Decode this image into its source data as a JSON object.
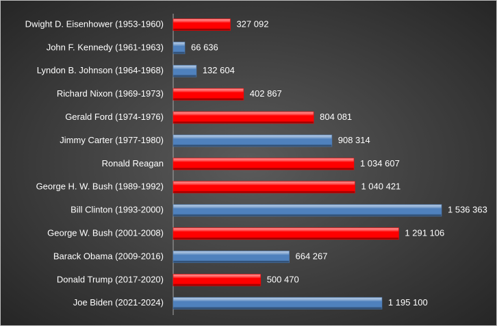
{
  "chart_data": {
    "type": "bar",
    "orientation": "horizontal",
    "categories": [
      "Dwight D. Eisenhower (1953-1960)",
      "John F. Kennedy (1961-1963)",
      "Lyndon B. Johnson (1964-1968)",
      "Richard Nixon (1969-1973)",
      "Gerald Ford (1974-1976)",
      "Jimmy Carter (1977-1980)",
      "Ronald Reagan",
      "George H. W. Bush (1989-1992)",
      "Bill Clinton (1993-2000)",
      "George W. Bush (2001-2008)",
      "Barack Obama (2009-2016)",
      "Donald Trump (2017-2020)",
      "Joe Biden (2021-2024)"
    ],
    "values": [
      327092,
      66636,
      132604,
      402867,
      804081,
      908314,
      1034607,
      1040421,
      1536363,
      1291106,
      664267,
      500470,
      1195100
    ],
    "value_labels": [
      "327 092",
      "66 636",
      "132 604",
      "402 867",
      "804 081",
      "908 314",
      "1 034 607",
      "1 040 421",
      "1 536 363",
      "1 291 106",
      "664 267",
      "500 470",
      "1 195 100"
    ],
    "colors": [
      "#ff0000",
      "#4f81bd",
      "#4f81bd",
      "#ff0000",
      "#ff0000",
      "#4f81bd",
      "#ff0000",
      "#ff0000",
      "#4f81bd",
      "#ff0000",
      "#4f81bd",
      "#ff0000",
      "#4f81bd"
    ]
  }
}
